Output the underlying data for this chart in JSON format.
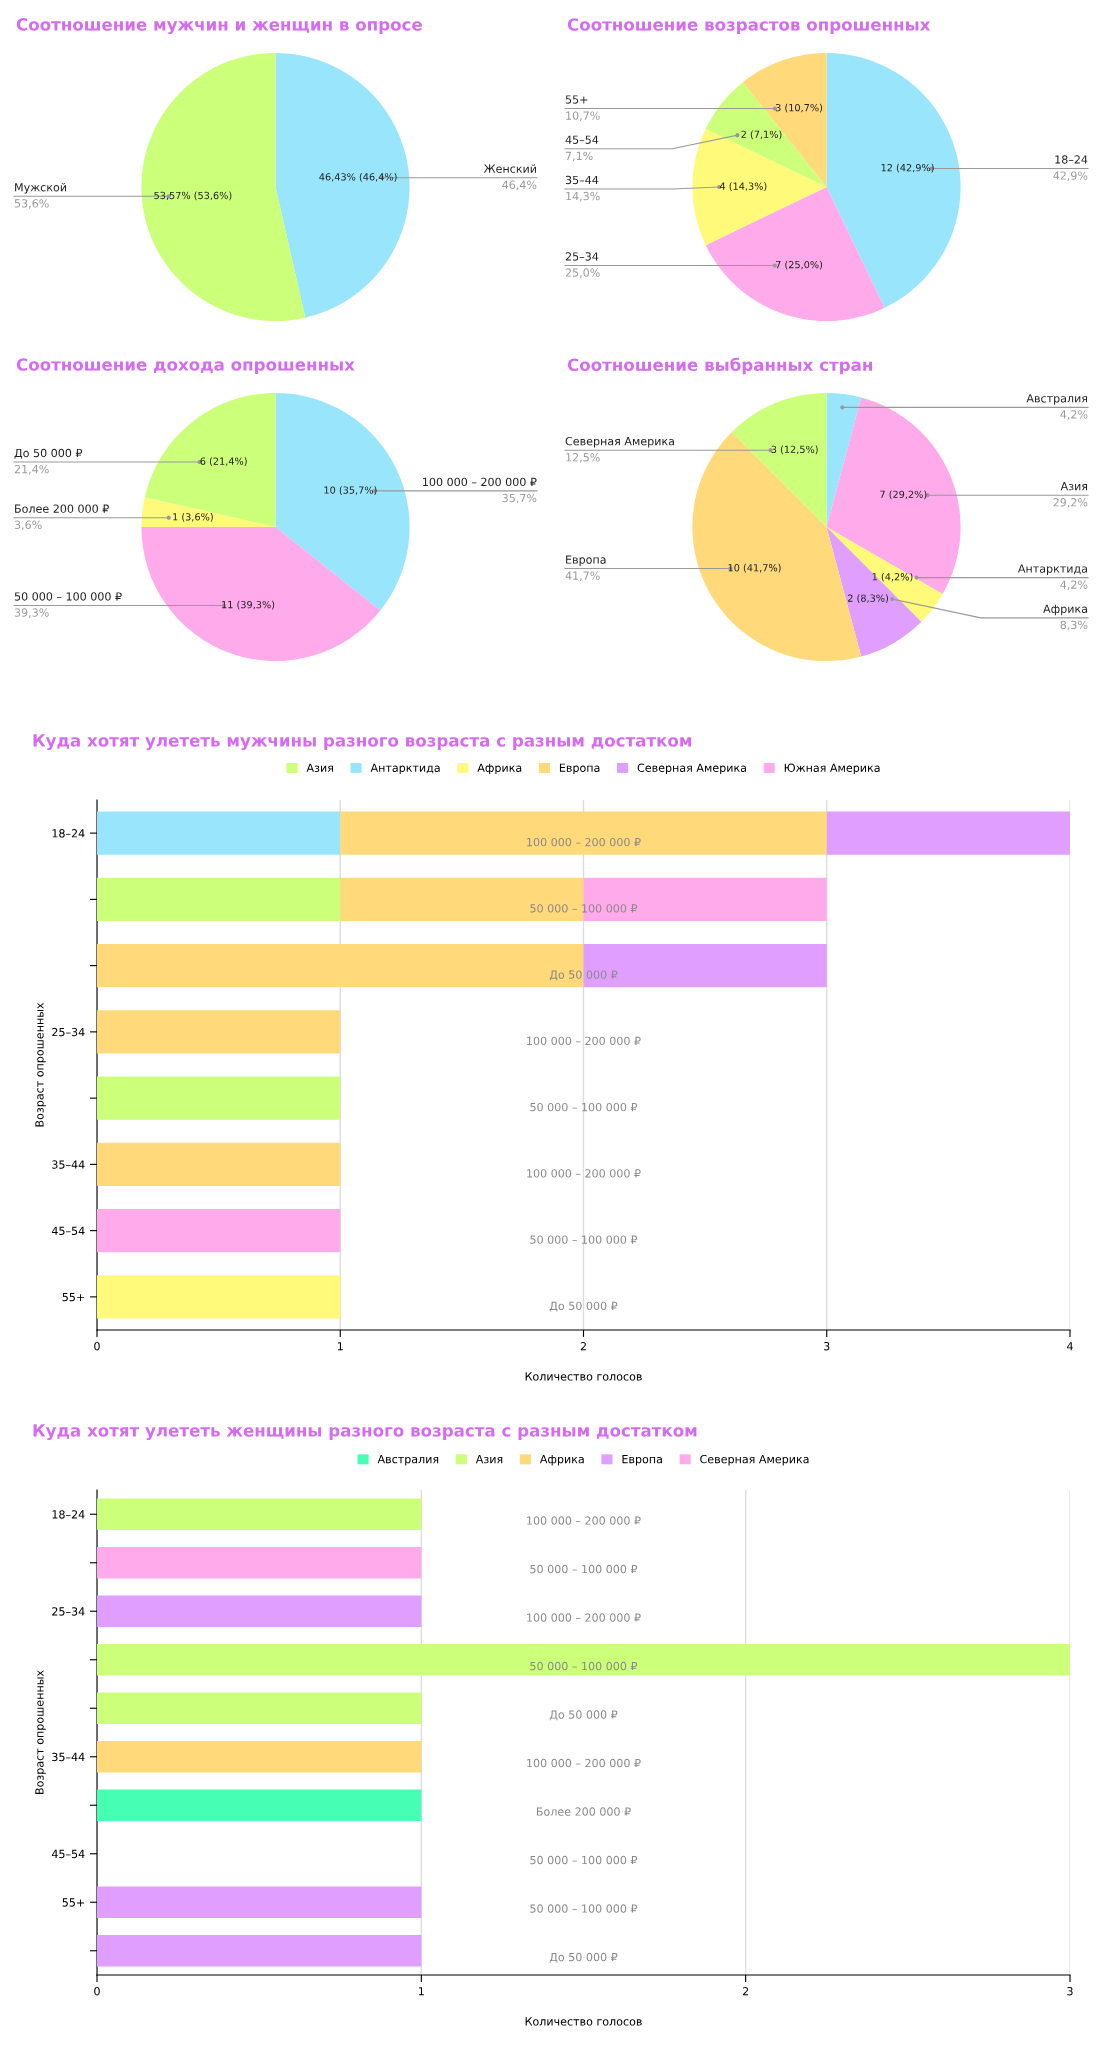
{
  "chart_data": [
    {
      "type": "pie",
      "title": "Соотношение мужчин и женщин в опросе",
      "categories": [
        "Женский",
        "Мужской"
      ],
      "values": [
        46.43,
        53.57
      ],
      "colors": [
        "#99e6fc",
        "#ccff7a"
      ],
      "value_labels": [
        "46,43% (46,4%)",
        "53,57% (53,6%)"
      ],
      "annotations": [
        "46,4%",
        "53,6%"
      ]
    },
    {
      "type": "pie",
      "title": "Соотношение возрастов опрошенных",
      "categories": [
        "18–24",
        "25–34",
        "35–44",
        "45–54",
        "55+"
      ],
      "values": [
        12,
        7,
        4,
        2,
        3
      ],
      "colors": [
        "#99e6fc",
        "#ffaaeb",
        "#fffa7a",
        "#ccff7a",
        "#ffd97a"
      ],
      "value_labels": [
        "12 (42,9%)",
        "7 (25,0%)",
        "4 (14,3%)",
        "2 (7,1%)",
        "3 (10,7%)"
      ],
      "annotations": [
        "42,9%",
        "25,0%",
        "14,3%",
        "7,1%",
        "10,7%"
      ]
    },
    {
      "type": "pie",
      "title": "Соотношение дохода опрошенных",
      "categories": [
        "100 000 – 200 000 ₽",
        "50 000 – 100 000 ₽",
        "Более 200 000 ₽",
        "До 50 000 ₽"
      ],
      "values": [
        10,
        11,
        1,
        6
      ],
      "colors": [
        "#99e6fc",
        "#ffaaeb",
        "#fffa7a",
        "#ccff7a"
      ],
      "value_labels": [
        "10 (35,7%)",
        "11 (39,3%)",
        "1 (3,6%)",
        "6 (21,4%)"
      ],
      "annotations": [
        "35,7%",
        "39,3%",
        "3,6%",
        "21,4%"
      ]
    },
    {
      "type": "pie",
      "title": "Соотношение выбранных стран",
      "categories": [
        "Австралия",
        "Азия",
        "Антарктида",
        "Африка",
        "Европа",
        "Северная Америка"
      ],
      "values": [
        1,
        7,
        1,
        2,
        10,
        3
      ],
      "colors": [
        "#99e6fc",
        "#ffaaeb",
        "#fffa7a",
        "#e09fff",
        "#ffd97a",
        "#ccff7a"
      ],
      "value_labels": [
        null,
        "7 (29,2%)",
        "1 (4,2%)",
        "2 (8,3%)",
        "10 (41,7%)",
        "3 (12,5%)"
      ],
      "annotations": [
        "4,2%",
        "29,2%",
        "4,2%",
        "8,3%",
        "41,7%",
        "12,5%"
      ]
    },
    {
      "type": "bar",
      "orientation": "horizontal",
      "stacked": true,
      "title": "Куда хотят улететь мужчины разного возраста с разным достатком",
      "xlabel": "Количество голосов",
      "ylabel": "Возраст опрошенных",
      "categories": [
        "18–24",
        null,
        null,
        "25–34",
        null,
        "35–44",
        "45–54",
        "55+"
      ],
      "xlim": [
        0,
        4
      ],
      "xticks": [
        0,
        1,
        2,
        3,
        4
      ],
      "grid": "x",
      "legend": "top",
      "series": [
        {
          "name": "Азия",
          "color": "#ccff7a",
          "values": [
            null,
            1,
            null,
            null,
            1,
            null,
            null,
            null
          ]
        },
        {
          "name": "Антарктида",
          "color": "#99e6fc",
          "values": [
            1,
            null,
            null,
            null,
            null,
            null,
            null,
            null
          ]
        },
        {
          "name": "Африка",
          "color": "#fffa7a",
          "values": [
            null,
            null,
            null,
            null,
            null,
            null,
            null,
            1
          ]
        },
        {
          "name": "Европа",
          "color": "#ffd97a",
          "values": [
            2,
            1,
            2,
            1,
            null,
            1,
            null,
            null
          ]
        },
        {
          "name": "Северная Америка",
          "color": "#e09fff",
          "values": [
            1,
            null,
            1,
            null,
            null,
            null,
            null,
            null
          ]
        },
        {
          "name": "Южная Америка",
          "color": "#ffaaeb",
          "values": [
            null,
            1,
            null,
            null,
            null,
            null,
            1,
            null
          ]
        }
      ],
      "annotations": [
        "100 000 – 200 000 ₽",
        "50 000 – 100 000 ₽",
        "До 50 000 ₽",
        "100 000 – 200 000 ₽",
        "50 000 – 100 000 ₽",
        "100 000 – 200 000 ₽",
        "50 000 – 100 000 ₽",
        "До 50 000 ₽"
      ]
    },
    {
      "type": "bar",
      "orientation": "horizontal",
      "stacked": true,
      "title": "Куда хотят улететь женщины разного возраста с разным достатком",
      "xlabel": "Количество голосов",
      "ylabel": "Возраст опрошенных",
      "categories": [
        "18–24",
        null,
        "25–34",
        null,
        null,
        "35–44",
        null,
        "45–54",
        "55+",
        null
      ],
      "xlim": [
        0,
        3
      ],
      "xticks": [
        0,
        1,
        2,
        3
      ],
      "grid": "x",
      "legend": "top",
      "series": [
        {
          "name": "Австралия",
          "color": "#47ffb4",
          "values": [
            null,
            null,
            null,
            null,
            null,
            null,
            1,
            null,
            null,
            null
          ]
        },
        {
          "name": "Азия",
          "color": "#ccff7a",
          "values": [
            1,
            null,
            null,
            3,
            1,
            null,
            null,
            null,
            null,
            null
          ]
        },
        {
          "name": "Африка",
          "color": "#ffd97a",
          "values": [
            null,
            null,
            null,
            null,
            null,
            1,
            null,
            null,
            null,
            null
          ]
        },
        {
          "name": "Европа",
          "color": "#e09fff",
          "values": [
            null,
            null,
            1,
            null,
            null,
            null,
            null,
            null,
            1,
            1
          ]
        },
        {
          "name": "Северная Америка",
          "color": "#ffaaeb",
          "values": [
            null,
            1,
            null,
            null,
            null,
            null,
            null,
            null,
            null,
            null
          ]
        }
      ],
      "annotations": [
        "100 000 – 200 000 ₽",
        "50 000 – 100 000 ₽",
        "100 000 – 200 000 ₽",
        "50 000 – 100 000 ₽",
        "До 50 000 ₽",
        "100 000 – 200 000 ₽",
        "Более 200 000 ₽",
        "50 000 – 100 000 ₽",
        "50 000 – 100 000 ₽",
        "До 50 000 ₽"
      ]
    }
  ]
}
